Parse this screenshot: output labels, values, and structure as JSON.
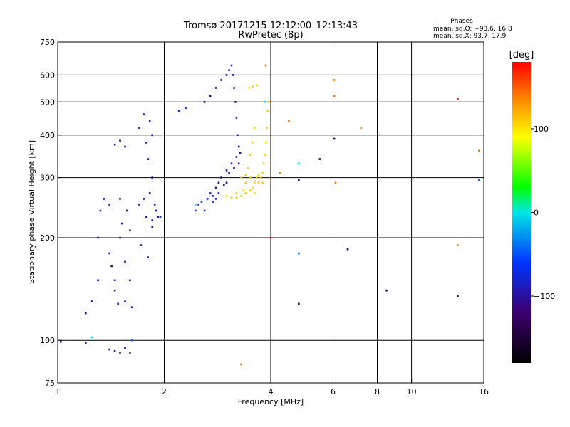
{
  "chart_data": {
    "type": "scatter",
    "title": "Tromsø 20171215 12:12:00–12:13:43",
    "subtitle": "RwPretec (8p)",
    "xlabel": "Frequency [MHz]",
    "ylabel": "Stationary phase Virtual Height [km]",
    "x_scale": "log",
    "y_scale": "log",
    "xlim": [
      1,
      16
    ],
    "ylim": [
      75,
      750
    ],
    "x_ticks": [
      1,
      2,
      4,
      6,
      8,
      10,
      16
    ],
    "x_tick_labels": [
      "1",
      "2",
      "4",
      "6",
      "8",
      "10",
      "16"
    ],
    "x_gridlines": [
      2,
      4,
      6,
      8,
      10
    ],
    "y_ticks": [
      75,
      100,
      200,
      300,
      400,
      500,
      600,
      750
    ],
    "y_tick_labels": [
      "75",
      "100",
      "200",
      "300",
      "400",
      "500",
      "600",
      "750"
    ],
    "y_gridlines": [
      100,
      200,
      300,
      400,
      500,
      600
    ],
    "grid": true,
    "stats": {
      "title": "Phases",
      "line_o": "mean, sd,O: −93.6, 16.8",
      "line_x": "mean, sd,X:  93.7, 17.9"
    },
    "colorbar": {
      "label": "[deg]",
      "min": -180,
      "max": 180,
      "ticks": [
        100,
        0,
        -100
      ],
      "tick_labels": [
        "100",
        "0",
        "−100"
      ]
    },
    "series": [
      {
        "phase_deg": -100,
        "points": [
          [
            1.2,
            120
          ],
          [
            1.25,
            130
          ],
          [
            1.3,
            150
          ],
          [
            1.3,
            200
          ],
          [
            1.32,
            240
          ],
          [
            1.35,
            260
          ],
          [
            1.4,
            250
          ],
          [
            1.4,
            180
          ],
          [
            1.42,
            165
          ],
          [
            1.45,
            150
          ],
          [
            1.45,
            140
          ],
          [
            1.48,
            128
          ],
          [
            1.5,
            200
          ],
          [
            1.5,
            260
          ],
          [
            1.52,
            220
          ],
          [
            1.55,
            170
          ],
          [
            1.55,
            130
          ],
          [
            1.57,
            240
          ],
          [
            1.6,
            210
          ],
          [
            1.6,
            150
          ],
          [
            1.62,
            125
          ],
          [
            1.45,
            375
          ],
          [
            1.5,
            385
          ],
          [
            1.55,
            370
          ],
          [
            1.7,
            250
          ],
          [
            1.72,
            190
          ],
          [
            1.75,
            260
          ],
          [
            1.78,
            230
          ],
          [
            1.8,
            175
          ],
          [
            1.82,
            270
          ],
          [
            1.85,
            215
          ],
          [
            1.88,
            250
          ],
          [
            1.9,
            240
          ],
          [
            1.92,
            230
          ],
          [
            1.7,
            420
          ],
          [
            1.75,
            460
          ],
          [
            1.78,
            380
          ],
          [
            1.82,
            440
          ],
          [
            1.85,
            400
          ],
          [
            1.8,
            340
          ],
          [
            1.85,
            300
          ],
          [
            1.4,
            94
          ],
          [
            1.45,
            93
          ],
          [
            1.5,
            92
          ],
          [
            1.55,
            95
          ],
          [
            1.6,
            92
          ],
          [
            1.02,
            99
          ],
          [
            1.2,
            98
          ]
        ]
      },
      {
        "phase_deg": -105,
        "points": [
          [
            2.6,
            500
          ],
          [
            2.7,
            520
          ],
          [
            2.8,
            550
          ],
          [
            2.9,
            580
          ],
          [
            3.0,
            600
          ],
          [
            3.05,
            620
          ],
          [
            3.1,
            640
          ],
          [
            3.13,
            600
          ],
          [
            3.15,
            550
          ],
          [
            3.18,
            500
          ],
          [
            3.2,
            450
          ],
          [
            3.22,
            400
          ],
          [
            3.25,
            370
          ],
          [
            3.2,
            345
          ],
          [
            3.1,
            330
          ],
          [
            3.0,
            315
          ],
          [
            2.9,
            300
          ],
          [
            2.85,
            290
          ],
          [
            2.8,
            280
          ],
          [
            3.05,
            310
          ],
          [
            3.15,
            320
          ],
          [
            3.25,
            330
          ],
          [
            3.28,
            355
          ],
          [
            3.0,
            290
          ],
          [
            2.95,
            285
          ]
        ]
      },
      {
        "phase_deg": -75,
        "points": [
          [
            2.45,
            240
          ],
          [
            2.5,
            250
          ],
          [
            2.55,
            255
          ],
          [
            2.65,
            260
          ],
          [
            2.7,
            270
          ],
          [
            2.75,
            265
          ],
          [
            2.8,
            260
          ],
          [
            2.6,
            240
          ],
          [
            2.75,
            255
          ],
          [
            2.85,
            270
          ],
          [
            1.9,
            240
          ],
          [
            1.95,
            230
          ],
          [
            1.85,
            225
          ],
          [
            2.3,
            480
          ],
          [
            2.2,
            470
          ]
        ]
      },
      {
        "phase_deg": 110,
        "points": [
          [
            3.0,
            265
          ],
          [
            3.1,
            262
          ],
          [
            3.2,
            262
          ],
          [
            3.3,
            265
          ],
          [
            3.4,
            270
          ],
          [
            3.5,
            275
          ],
          [
            3.55,
            280
          ],
          [
            3.6,
            290
          ],
          [
            3.65,
            300
          ],
          [
            3.7,
            305
          ],
          [
            3.75,
            300
          ],
          [
            3.8,
            310
          ],
          [
            3.82,
            330
          ],
          [
            3.85,
            350
          ],
          [
            3.88,
            380
          ],
          [
            3.9,
            420
          ],
          [
            3.92,
            470
          ],
          [
            3.95,
            500
          ],
          [
            3.45,
            320
          ],
          [
            3.5,
            350
          ],
          [
            3.55,
            380
          ],
          [
            3.6,
            420
          ],
          [
            3.48,
            550
          ],
          [
            3.55,
            555
          ],
          [
            3.65,
            560
          ],
          [
            3.2,
            270
          ],
          [
            3.35,
            275
          ],
          [
            3.4,
            290
          ],
          [
            3.5,
            300
          ],
          [
            3.7,
            290
          ],
          [
            3.8,
            290
          ],
          [
            3.6,
            270
          ],
          [
            3.3,
            300
          ],
          [
            3.4,
            305
          ]
        ]
      },
      {
        "phase_deg": 140,
        "points": [
          [
            3.87,
            640
          ],
          [
            4.5,
            440
          ],
          [
            6.05,
            580
          ],
          [
            6.05,
            520
          ],
          [
            7.2,
            420
          ],
          [
            6.1,
            290
          ],
          [
            3.3,
            85
          ],
          [
            15.5,
            360
          ],
          [
            4.25,
            310
          ],
          [
            13.5,
            190
          ]
        ]
      },
      {
        "phase_deg": 175,
        "points": [
          [
            4.0,
            200
          ],
          [
            13.5,
            510
          ]
        ]
      },
      {
        "phase_deg": 0,
        "points": [
          [
            1.25,
            102
          ],
          [
            2.45,
            250
          ],
          [
            4.8,
            330
          ],
          [
            3.85,
            500
          ]
        ]
      },
      {
        "phase_deg": -40,
        "points": [
          [
            4.8,
            180
          ],
          [
            15.5,
            295
          ],
          [
            1.62,
            100
          ]
        ]
      },
      {
        "phase_deg": -130,
        "points": [
          [
            5.5,
            340
          ],
          [
            6.6,
            185
          ],
          [
            8.5,
            140
          ],
          [
            13.5,
            135
          ],
          [
            4.8,
            128
          ],
          [
            6.05,
            390
          ],
          [
            4.8,
            295
          ]
        ]
      }
    ]
  }
}
